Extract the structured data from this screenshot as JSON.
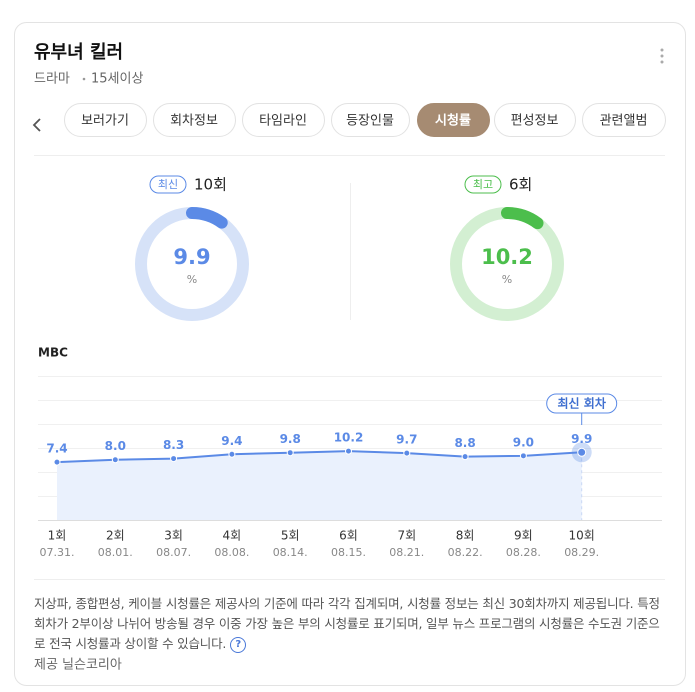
{
  "header": {
    "title": "유부녀 킬러",
    "genre": "드라마",
    "rating": "15세이상"
  },
  "tabs": [
    "보러가기",
    "회차정보",
    "타임라인",
    "등장인물",
    "시청률",
    "편성정보",
    "관련앨범"
  ],
  "active_tab_index": 4,
  "gauges": [
    {
      "badge": "최신",
      "episode": "10회",
      "value": 9.9,
      "unit": "%",
      "range": [
        0,
        100
      ],
      "color": "#5b8ae6",
      "track_color": "#d6e2f8"
    },
    {
      "badge": "최고",
      "episode": "6회",
      "value": 10.2,
      "unit": "%",
      "range": [
        0,
        100
      ],
      "color": "#4cbe4c",
      "track_color": "#d3efd2"
    }
  ],
  "chart_data": {
    "type": "line",
    "subtitle": "MBC",
    "categories": [
      "1회",
      "2회",
      "3회",
      "4회",
      "5회",
      "6회",
      "7회",
      "8회",
      "9회",
      "10회"
    ],
    "dates": [
      "07.31.",
      "08.01.",
      "08.07.",
      "08.08.",
      "08.14.",
      "08.15.",
      "08.21.",
      "08.22.",
      "08.28.",
      "08.29."
    ],
    "values": [
      7.4,
      8.0,
      8.3,
      9.4,
      9.8,
      10.2,
      9.7,
      8.8,
      9.0,
      9.9
    ],
    "value_labels": [
      "7.4",
      "8.0",
      "8.3",
      "9.4",
      "9.8",
      "10.2",
      "9.7",
      "8.8",
      "9.0",
      "9.9"
    ],
    "color": "#5b8ae6",
    "ylim": [
      -7.4,
      29.4
    ],
    "annotation": "최신 회차"
  },
  "footer": {
    "note": "지상파, 종합편성, 케이블 시청률은 제공사의 기준에 따라 각각 집계되며, 시청률 정보는 최신 30회차까지 제공됩니다. 특정 회차가 2부이상 나뉘어 방송될 경우 이중 가장 높은 부의 시청률로 표기되며, 일부 뉴스 프로그램의 시청률은 수도권 기준으로 전국 시청률과 상이할 수 있습니다.",
    "source": "제공 닐슨코리아"
  }
}
